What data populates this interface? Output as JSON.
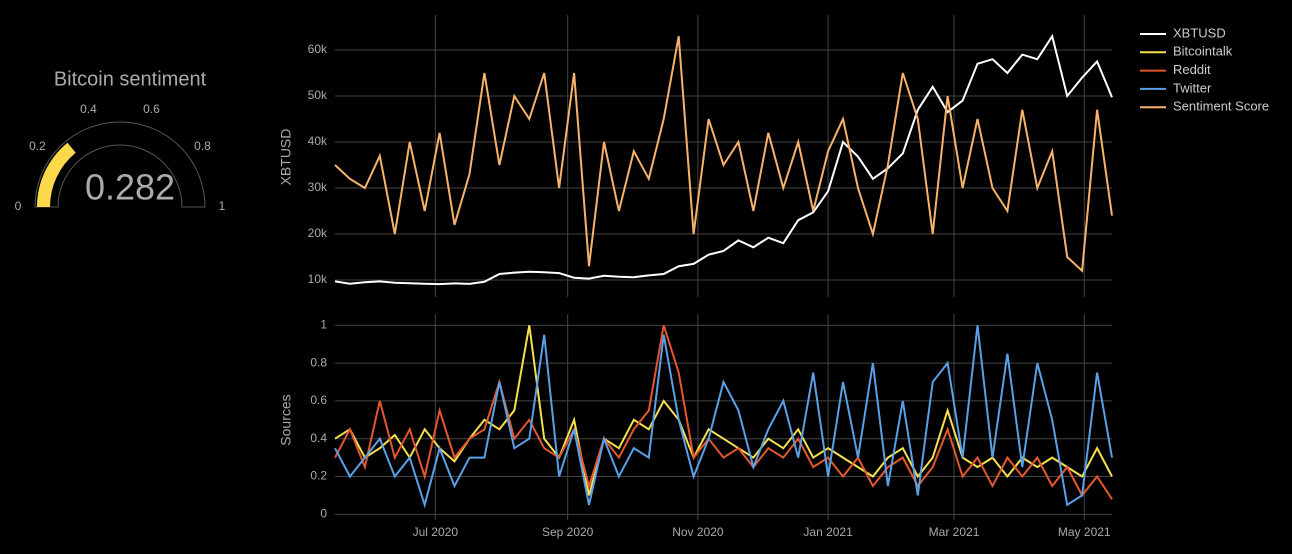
{
  "chart_data": [
    {
      "type": "gauge",
      "title": "Bitcoin sentiment",
      "value": 0.282,
      "range": [
        0,
        1
      ],
      "ticks": [
        0,
        0.2,
        0.4,
        0.6,
        0.8,
        1
      ],
      "color": "#fcd94a"
    },
    {
      "type": "line",
      "ylabel": "XBTUSD",
      "x": [
        "2020-05-15",
        "2020-05-22",
        "2020-05-29",
        "2020-06-05",
        "2020-06-12",
        "2020-06-19",
        "2020-06-26",
        "2020-07-03",
        "2020-07-10",
        "2020-07-17",
        "2020-07-24",
        "2020-07-31",
        "2020-08-07",
        "2020-08-14",
        "2020-08-21",
        "2020-08-28",
        "2020-09-04",
        "2020-09-11",
        "2020-09-18",
        "2020-09-25",
        "2020-10-02",
        "2020-10-09",
        "2020-10-16",
        "2020-10-23",
        "2020-10-30",
        "2020-11-06",
        "2020-11-13",
        "2020-11-20",
        "2020-11-27",
        "2020-12-04",
        "2020-12-11",
        "2020-12-18",
        "2020-12-25",
        "2021-01-01",
        "2021-01-08",
        "2021-01-15",
        "2021-01-22",
        "2021-01-29",
        "2021-02-05",
        "2021-02-12",
        "2021-02-19",
        "2021-02-26",
        "2021-03-05",
        "2021-03-12",
        "2021-03-19",
        "2021-03-26",
        "2021-04-02",
        "2021-04-09",
        "2021-04-16",
        "2021-04-23",
        "2021-04-30",
        "2021-05-07",
        "2021-05-14"
      ],
      "series": [
        {
          "name": "XBTUSD",
          "color": "#ffffff",
          "values": [
            9700,
            9200,
            9500,
            9700,
            9400,
            9300,
            9200,
            9100,
            9250,
            9150,
            9600,
            11300,
            11600,
            11800,
            11700,
            11500,
            10500,
            10300,
            10900,
            10700,
            10600,
            11000,
            11300,
            13000,
            13500,
            15500,
            16300,
            18600,
            17100,
            19200,
            18000,
            23000,
            24700,
            29300,
            40000,
            36800,
            32000,
            34300,
            37500,
            47000,
            52000,
            46500,
            49000,
            57000,
            58000,
            55000,
            59000,
            58000,
            63000,
            50000,
            54000,
            57500,
            49700
          ]
        },
        {
          "name": "Sentiment Score",
          "color": "#f7b36b",
          "values": [
            35000,
            32000,
            30000,
            37000,
            20000,
            40000,
            25000,
            42000,
            22000,
            33000,
            55000,
            35000,
            50000,
            45000,
            55000,
            30000,
            55000,
            13000,
            40000,
            25000,
            38000,
            32000,
            45000,
            63000,
            20000,
            45000,
            35000,
            40000,
            25000,
            42000,
            30000,
            40000,
            25000,
            38000,
            45000,
            30000,
            20000,
            35000,
            55000,
            45000,
            20000,
            50000,
            30000,
            45000,
            30000,
            25000,
            47000,
            30000,
            38000,
            15000,
            12000,
            47000,
            24000
          ]
        }
      ],
      "xlim": [
        "2020-05-15",
        "2021-05-14"
      ],
      "ylim": [
        6300,
        67600
      ],
      "yticks": [
        {
          "value": 10000,
          "label": "10k"
        },
        {
          "value": 20000,
          "label": "20k"
        },
        {
          "value": 30000,
          "label": "30k"
        },
        {
          "value": 40000,
          "label": "40k"
        },
        {
          "value": 50000,
          "label": "50k"
        },
        {
          "value": 60000,
          "label": "60k"
        }
      ],
      "grid": true
    },
    {
      "type": "line",
      "ylabel": "Sources",
      "series": [
        {
          "name": "Bitcointalk",
          "color": "#f5e14f",
          "values": [
            0.4,
            0.45,
            0.3,
            0.35,
            0.42,
            0.3,
            0.45,
            0.35,
            0.28,
            0.4,
            0.5,
            0.45,
            0.55,
            1.0,
            0.4,
            0.3,
            0.5,
            0.1,
            0.4,
            0.35,
            0.5,
            0.45,
            0.6,
            0.5,
            0.3,
            0.45,
            0.4,
            0.35,
            0.3,
            0.4,
            0.35,
            0.45,
            0.3,
            0.35,
            0.3,
            0.25,
            0.2,
            0.3,
            0.35,
            0.2,
            0.3,
            0.55,
            0.3,
            0.25,
            0.3,
            0.2,
            0.3,
            0.25,
            0.3,
            0.25,
            0.2,
            0.35,
            0.2
          ]
        },
        {
          "name": "Reddit",
          "color": "#e4572e",
          "values": [
            0.3,
            0.45,
            0.25,
            0.6,
            0.3,
            0.45,
            0.2,
            0.55,
            0.3,
            0.4,
            0.45,
            0.7,
            0.4,
            0.5,
            0.35,
            0.3,
            0.45,
            0.15,
            0.4,
            0.3,
            0.45,
            0.55,
            1.0,
            0.75,
            0.3,
            0.4,
            0.3,
            0.35,
            0.25,
            0.35,
            0.3,
            0.4,
            0.25,
            0.3,
            0.2,
            0.3,
            0.15,
            0.25,
            0.3,
            0.15,
            0.25,
            0.45,
            0.2,
            0.3,
            0.15,
            0.3,
            0.2,
            0.3,
            0.15,
            0.25,
            0.1,
            0.2,
            0.08
          ]
        },
        {
          "name": "Twitter",
          "color": "#5aa0e6",
          "values": [
            0.35,
            0.2,
            0.3,
            0.4,
            0.2,
            0.3,
            0.05,
            0.35,
            0.15,
            0.3,
            0.3,
            0.7,
            0.35,
            0.4,
            0.95,
            0.2,
            0.45,
            0.05,
            0.4,
            0.2,
            0.35,
            0.3,
            0.95,
            0.5,
            0.2,
            0.4,
            0.7,
            0.55,
            0.25,
            0.45,
            0.6,
            0.3,
            0.75,
            0.2,
            0.7,
            0.3,
            0.8,
            0.15,
            0.6,
            0.1,
            0.7,
            0.8,
            0.3,
            1.0,
            0.3,
            0.85,
            0.25,
            0.8,
            0.5,
            0.05,
            0.1,
            0.75,
            0.3
          ]
        }
      ],
      "ylim": [
        -0.03,
        1.06
      ],
      "yticks": [
        0,
        0.2,
        0.4,
        0.6,
        0.8,
        1
      ],
      "xticks": [
        {
          "value": "2020-07-01",
          "label": "Jul 2020"
        },
        {
          "value": "2020-09-01",
          "label": "Sep 2020"
        },
        {
          "value": "2020-11-01",
          "label": "Nov 2020"
        },
        {
          "value": "2021-01-01",
          "label": "Jan 2021"
        },
        {
          "value": "2021-03-01",
          "label": "Mar 2021"
        },
        {
          "value": "2021-05-01",
          "label": "May 2021"
        }
      ],
      "grid": true
    }
  ]
}
